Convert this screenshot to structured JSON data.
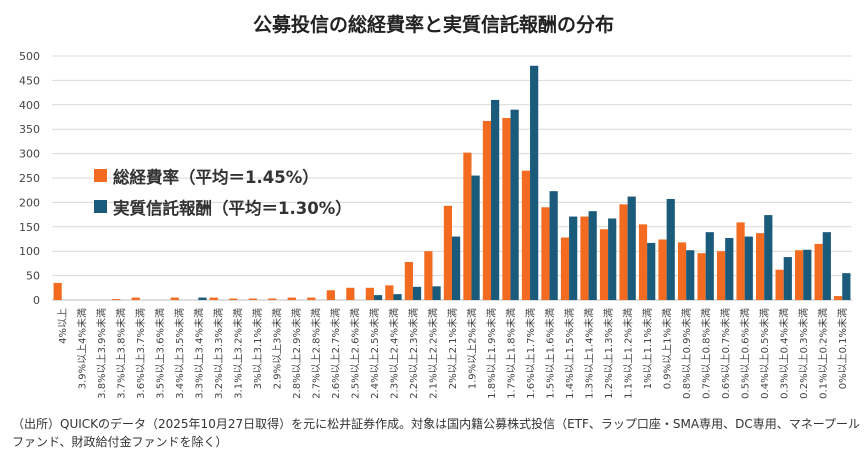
{
  "chart_data": {
    "type": "bar",
    "title": "公募投信の総経費率と実質信託報酬の分布",
    "ylim": [
      0,
      500
    ],
    "yticks": [
      0,
      50,
      100,
      150,
      200,
      250,
      300,
      350,
      400,
      450,
      500
    ],
    "grid": true,
    "legend_position": "center-left",
    "categories": [
      "4%以上",
      "3.9%以上4%未満",
      "3.8%以上3.9%未満",
      "3.7%以上3.8%未満",
      "3.6%以上3.7%未満",
      "3.5%以上3.6%未満",
      "3.4%以上3.5%未満",
      "3.3%以上3.4%未満",
      "3.2%以上3.3%未満",
      "3.1%以上3.2%未満",
      "3%以上3.1%未満",
      "2.9%以上3%未満",
      "2.8%以上2.9%未満",
      "2.7%以上2.8%未満",
      "2.6%以上2.7%未満",
      "2.5%以上2.6%未満",
      "2.4%以上2.5%未満",
      "2.3%以上2.4%未満",
      "2.2%以上2.3%未満",
      "2.1%以上2.2%未満",
      "2%以上2.1%未満",
      "1.9%以上2%未満",
      "1.8%以上1.9%未満",
      "1.7%以上1.8%未満",
      "1.6%以上1.7%未満",
      "1.5%以上1.6%未満",
      "1.4%以上1.5%未満",
      "1.3%以上1.4%未満",
      "1.2%以上1.3%未満",
      "1.1%以上1.2%未満",
      "1%以上1.1%未満",
      "0.9%以上1%未満",
      "0.8%以上0.9%未満",
      "0.7%以上0.8%未満",
      "0.6%以上0.7%未満",
      "0.5%以上0.6%未満",
      "0.4%以上0.5%未満",
      "0.3%以上0.4%未満",
      "0.2%以上0.3%未満",
      "0.1%以上0.2%未満",
      "0%以上0.1%未満"
    ],
    "series": [
      {
        "name": "総経費率（平均＝1.45%）",
        "color": "#f26b21",
        "values": [
          35,
          0,
          0,
          2,
          5,
          0,
          5,
          0,
          5,
          3,
          3,
          3,
          5,
          5,
          20,
          25,
          25,
          30,
          78,
          100,
          193,
          302,
          367,
          373,
          265,
          190,
          128,
          171,
          145,
          196,
          155,
          124,
          118,
          96,
          100,
          159,
          137,
          62,
          102,
          115,
          8
        ]
      },
      {
        "name": "実質信託報酬（平均＝1.30%）",
        "color": "#1a5a7a",
        "values": [
          0,
          0,
          0,
          0,
          0,
          0,
          0,
          5,
          0,
          0,
          0,
          0,
          0,
          0,
          0,
          0,
          10,
          12,
          27,
          28,
          130,
          255,
          410,
          390,
          480,
          223,
          171,
          182,
          167,
          212,
          117,
          207,
          102,
          139,
          127,
          130,
          174,
          88,
          103,
          139,
          55
        ]
      }
    ]
  },
  "footnote": "（出所）QUICKのデータ（2025年10月27日取得）を元に松井証券作成。対象は国内籍公募株式投信（ETF、ラップ口座・SMA専用、DC専用、マネープールファンド、財政給付金ファンドを除く）"
}
